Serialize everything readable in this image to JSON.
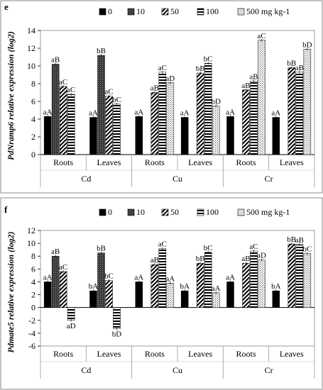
{
  "legend": {
    "items": [
      {
        "label": "0",
        "pattern": "black"
      },
      {
        "label": "10",
        "pattern": "darkgrid"
      },
      {
        "label": "50",
        "pattern": "diag"
      },
      {
        "label": "100",
        "pattern": "horiz"
      },
      {
        "label": "500 mg kg-1",
        "pattern": "dots"
      }
    ]
  },
  "chart_data": [
    {
      "type": "bar",
      "panel_letter": "e",
      "title": "",
      "xlabel": "",
      "ylabel": "PdNramp6 relative expression (log2)",
      "ylim": [
        0,
        14
      ],
      "yticks": [
        0,
        2,
        4,
        6,
        8,
        10,
        12,
        14
      ],
      "categories": [
        "Roots",
        "Leaves",
        "Roots",
        "Leaves",
        "Roots",
        "Leaves"
      ],
      "groups": [
        "Cd",
        "Cu",
        "Cr"
      ],
      "series": [
        {
          "name": "0",
          "values": [
            4.3,
            4.2,
            4.3,
            4.2,
            4.3,
            4.2
          ]
        },
        {
          "name": "10",
          "values": [
            10.2,
            11.2,
            0,
            0,
            0,
            0
          ]
        },
        {
          "name": "50",
          "values": [
            7.7,
            6.6,
            7.0,
            9.2,
            7.3,
            9.8
          ]
        },
        {
          "name": "100",
          "values": [
            6.8,
            5.7,
            9.3,
            10.3,
            8.3,
            9.3
          ]
        },
        {
          "name": "500 mg kg-1",
          "values": [
            0,
            0,
            8.1,
            5.5,
            12.9,
            11.9
          ]
        }
      ],
      "annotations": [
        [
          "aA",
          "aB",
          "aC",
          "aC",
          ""
        ],
        [
          "aA",
          "bB",
          "aC",
          "bC",
          ""
        ],
        [
          "aA",
          "",
          "aB",
          "aC",
          "aD"
        ],
        [
          "aA",
          "",
          "bB",
          "bC",
          "bD"
        ],
        [
          "aA",
          "",
          "aB",
          "aB",
          "aC"
        ],
        [
          "aA",
          "",
          "bB",
          "aB",
          "bD"
        ]
      ]
    },
    {
      "type": "bar",
      "panel_letter": "f",
      "title": "",
      "xlabel": "",
      "ylabel": "Pdmate5 relative expression (log2)",
      "ylim": [
        -6,
        12
      ],
      "yticks": [
        -6,
        -4,
        -2,
        0,
        2,
        4,
        6,
        8,
        10,
        12
      ],
      "categories": [
        "Roots",
        "Leaves",
        "Roots",
        "Leaves",
        "Roots",
        "Leaves"
      ],
      "groups": [
        "Cd",
        "Cu",
        "Cr"
      ],
      "series": [
        {
          "name": "0",
          "values": [
            4.0,
            2.6,
            4.0,
            2.6,
            4.0,
            2.6
          ]
        },
        {
          "name": "10",
          "values": [
            8.0,
            8.5,
            0,
            0,
            0,
            0
          ]
        },
        {
          "name": "50",
          "values": [
            5.6,
            4.2,
            6.7,
            6.9,
            6.9,
            9.9
          ]
        },
        {
          "name": "100",
          "values": [
            -2.0,
            -3.3,
            9.2,
            8.6,
            8.8,
            9.8
          ]
        },
        {
          "name": "500 mg kg-1",
          "values": [
            0,
            0,
            3.8,
            2.3,
            7.4,
            8.4
          ]
        }
      ],
      "annotations": [
        [
          "aA",
          "aB",
          "aC",
          "aD",
          ""
        ],
        [
          "bA",
          "bB",
          "bC",
          "bD",
          ""
        ],
        [
          "aA",
          "",
          "aB",
          "aC",
          "aA"
        ],
        [
          "bA",
          "",
          "bB",
          "bC",
          "aA"
        ],
        [
          "aA",
          "",
          "aB",
          "aC",
          "aD"
        ],
        [
          "bA",
          "",
          "bB",
          "aB",
          "bC"
        ]
      ]
    }
  ]
}
